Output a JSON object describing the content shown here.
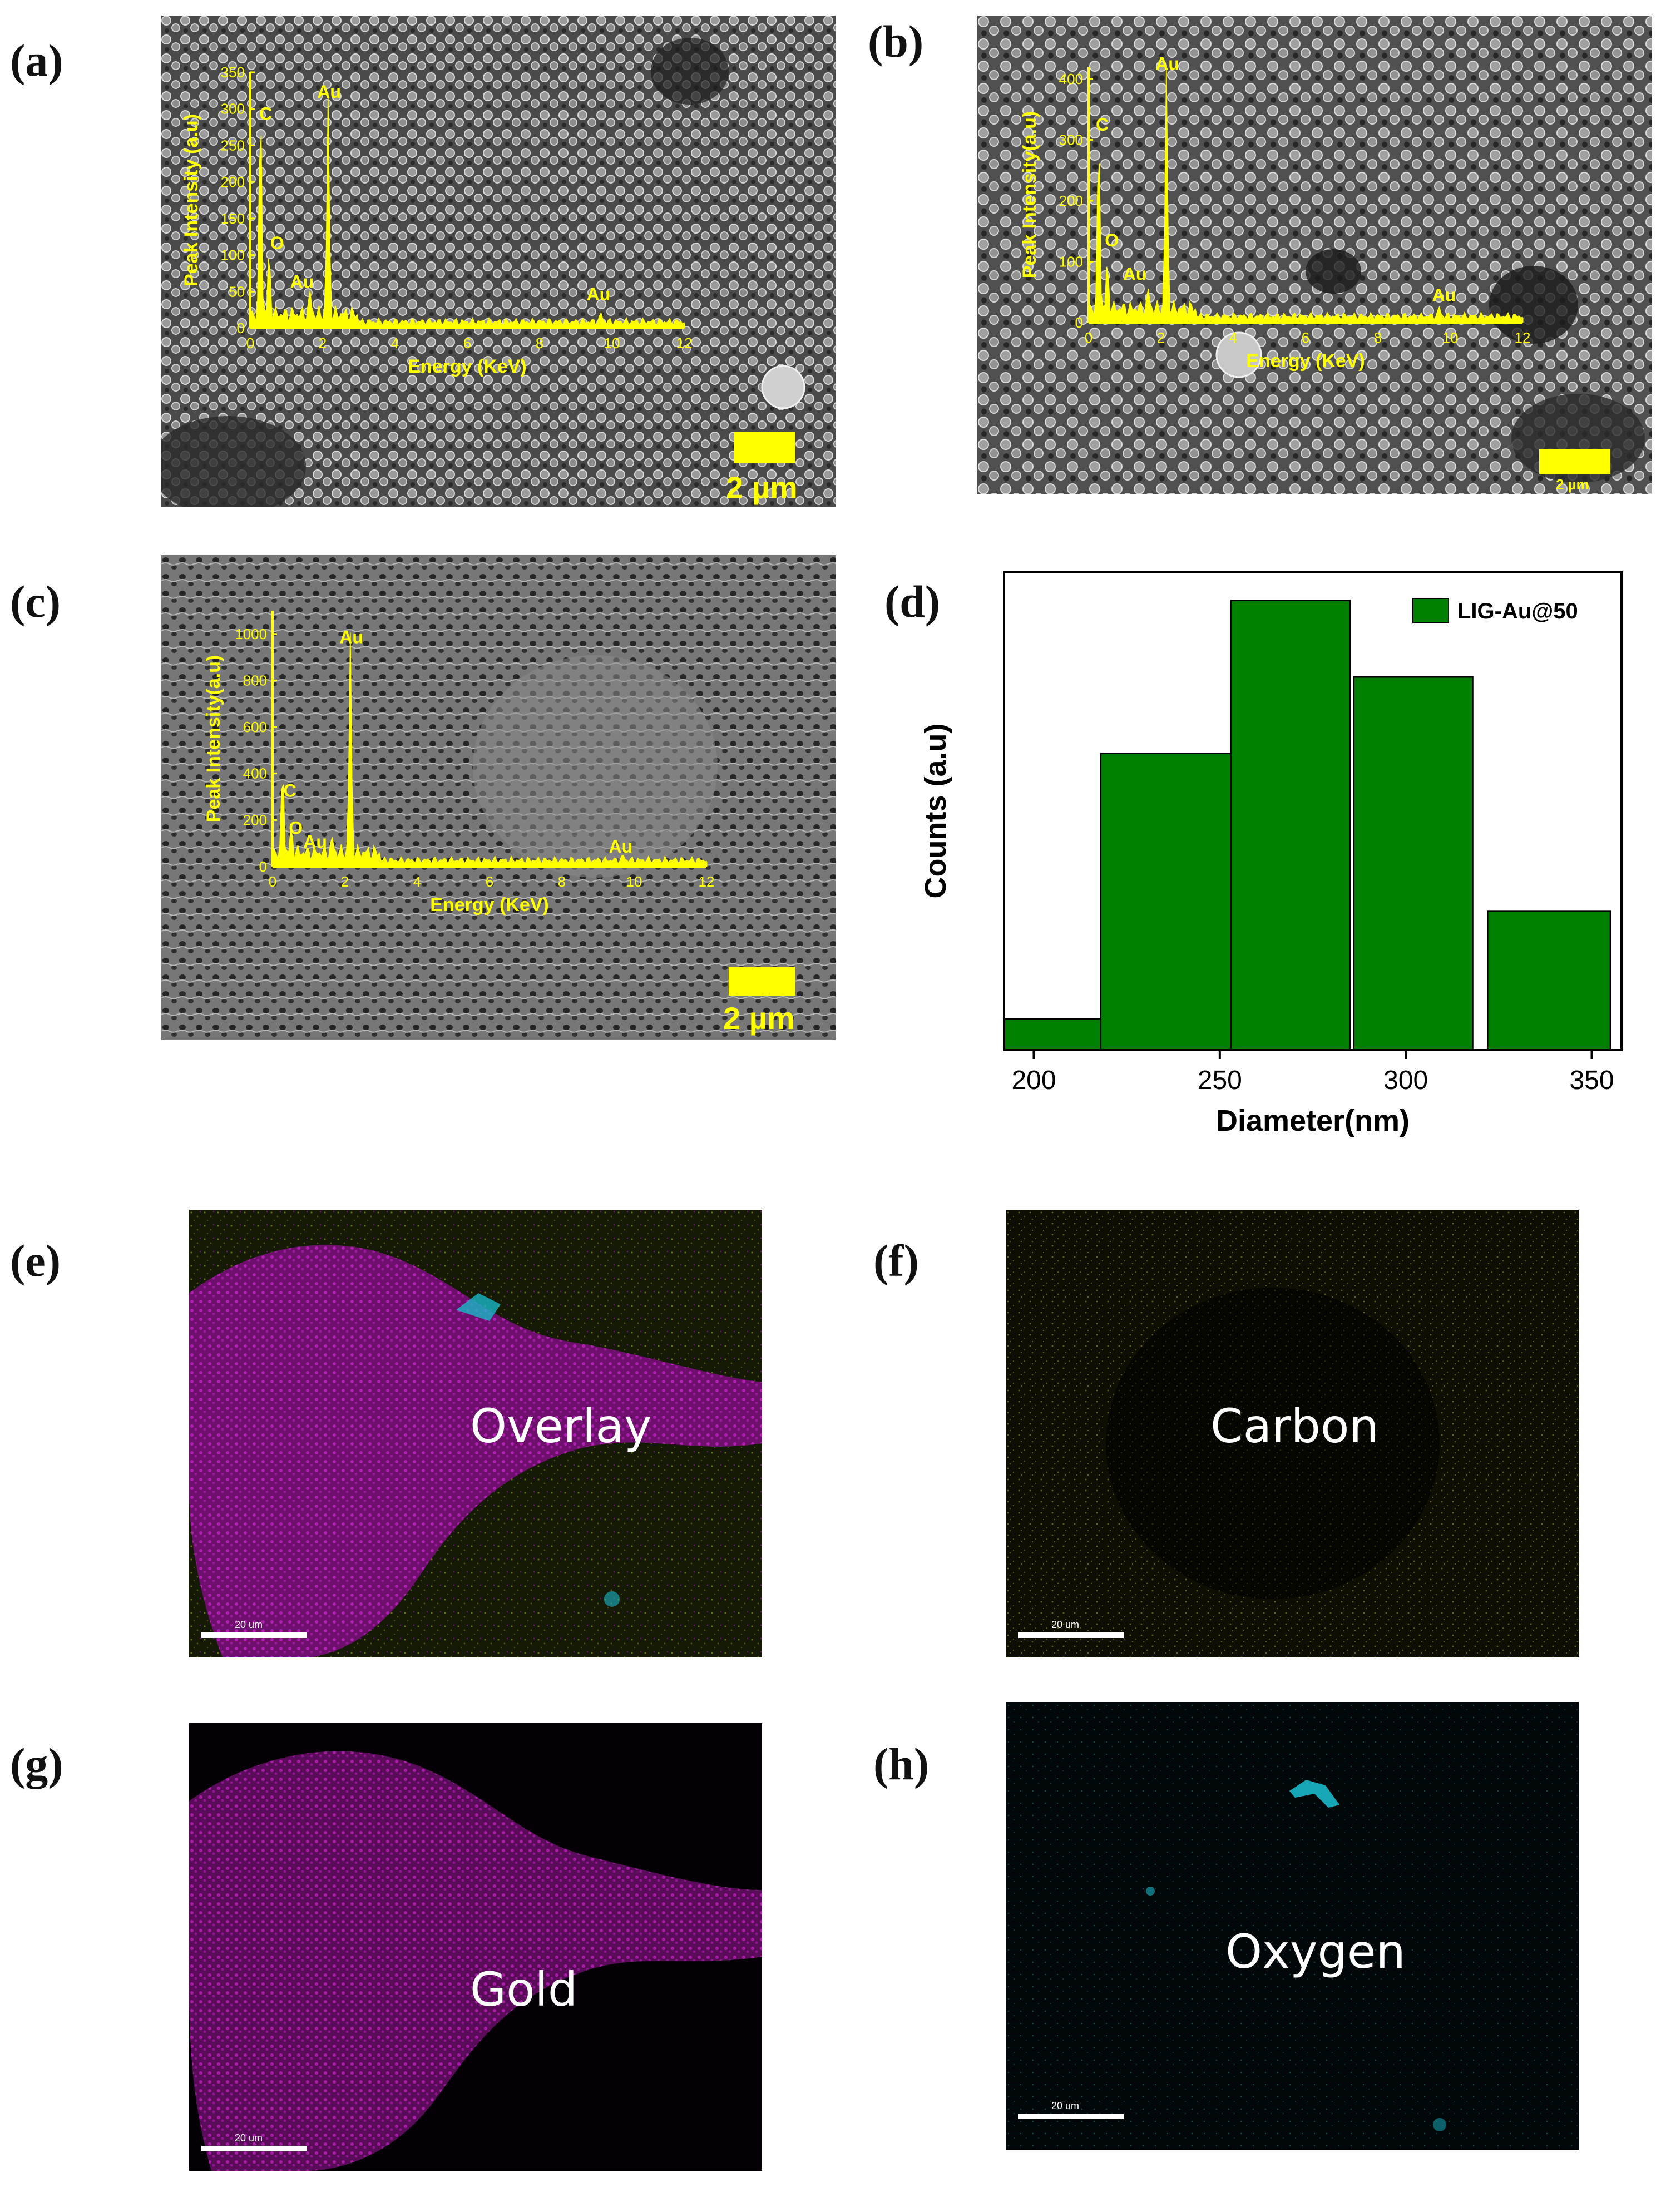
{
  "panels": {
    "a": {
      "label": "(a)",
      "scale_bar": "2 µm"
    },
    "b": {
      "label": "(b)",
      "scale_bar": "2 µm"
    },
    "c": {
      "label": "(c)",
      "scale_bar": "2 µm"
    },
    "d": {
      "label": "(d)"
    },
    "e": {
      "label": "(e)",
      "map_label": "Overlay",
      "scale_bar": "20 um"
    },
    "f": {
      "label": "(f)",
      "map_label": "Carbon",
      "scale_bar": "20 um"
    },
    "g": {
      "label": "(g)",
      "map_label": "Gold",
      "scale_bar": "20 um"
    },
    "h": {
      "label": "(h)",
      "map_label": "Oxygen",
      "scale_bar": "20 um"
    }
  },
  "colors": {
    "spectrum": "#ffff00",
    "bars": "#008000",
    "gold_map": "#b010b0",
    "carbon_map": "#8c8c00",
    "oxygen_map": "#18b8c8"
  },
  "chart_data": [
    {
      "id": "a",
      "type": "area",
      "xlabel": "Energy (KeV)",
      "ylabel": "Peak Intensity (a.u)",
      "xlim": [
        0,
        12
      ],
      "ylim": [
        0,
        350
      ],
      "xticks": [
        0,
        2,
        4,
        6,
        8,
        10,
        12
      ],
      "yticks": [
        0,
        50,
        100,
        150,
        200,
        250,
        300,
        350
      ],
      "peaks": [
        {
          "element": "C",
          "x": 0.28,
          "y": 305
        },
        {
          "element": "O",
          "x": 0.52,
          "y": 85
        },
        {
          "element": "Au",
          "x": 1.65,
          "y": 30
        },
        {
          "element": "Au",
          "x": 2.15,
          "y": 300
        },
        {
          "element": "Au",
          "x": 9.7,
          "y": 12
        }
      ],
      "annotations": [
        {
          "text": "C",
          "x": 0.25,
          "y": 285
        },
        {
          "text": "O",
          "x": 0.55,
          "y": 108
        },
        {
          "text": "Au",
          "x": 1.1,
          "y": 55
        },
        {
          "text": "Au",
          "x": 1.85,
          "y": 315
        },
        {
          "text": "Au",
          "x": 9.3,
          "y": 38
        }
      ]
    },
    {
      "id": "b",
      "type": "area",
      "xlabel": "Energy (KeV)",
      "ylabel": "Peak Intensity(a.u)",
      "xlim": [
        0,
        12
      ],
      "ylim": [
        0,
        420
      ],
      "xticks": [
        0,
        2,
        4,
        6,
        8,
        10,
        12
      ],
      "yticks": [
        0,
        100,
        200,
        300,
        400
      ],
      "peaks": [
        {
          "element": "C",
          "x": 0.28,
          "y": 300
        },
        {
          "element": "O",
          "x": 0.52,
          "y": 75
        },
        {
          "element": "Au",
          "x": 1.65,
          "y": 30
        },
        {
          "element": "Au",
          "x": 2.15,
          "y": 400
        },
        {
          "element": "Au",
          "x": 9.7,
          "y": 15
        }
      ],
      "annotations": [
        {
          "text": "C",
          "x": 0.2,
          "y": 315
        },
        {
          "text": "O",
          "x": 0.45,
          "y": 125
        },
        {
          "text": "Au",
          "x": 0.95,
          "y": 70
        },
        {
          "text": "Au",
          "x": 1.85,
          "y": 415
        },
        {
          "text": "Au",
          "x": 9.5,
          "y": 35
        }
      ]
    },
    {
      "id": "c",
      "type": "area",
      "xlabel": "Energy (KeV)",
      "ylabel": "Peak Intensity(a.u)",
      "xlim": [
        0,
        12
      ],
      "ylim": [
        0,
        1100
      ],
      "xticks": [
        0,
        2,
        4,
        6,
        8,
        10,
        12
      ],
      "yticks": [
        0,
        200,
        400,
        600,
        800,
        1000
      ],
      "peaks": [
        {
          "element": "C",
          "x": 0.28,
          "y": 380
        },
        {
          "element": "O",
          "x": 0.52,
          "y": 100
        },
        {
          "element": "Au",
          "x": 1.65,
          "y": 60
        },
        {
          "element": "Au",
          "x": 2.15,
          "y": 940
        },
        {
          "element": "Au",
          "x": 9.7,
          "y": 20
        }
      ],
      "annotations": [
        {
          "text": "C",
          "x": 0.3,
          "y": 300
        },
        {
          "text": "O",
          "x": 0.45,
          "y": 140
        },
        {
          "text": "Au",
          "x": 0.85,
          "y": 80
        },
        {
          "text": "Au",
          "x": 1.85,
          "y": 960
        },
        {
          "text": "Au",
          "x": 9.3,
          "y": 60
        }
      ]
    },
    {
      "id": "d",
      "type": "bar",
      "xlabel": "Diameter(nm)",
      "ylabel": "Counts (a.u)",
      "xlim": [
        192,
        358
      ],
      "xticks": [
        200,
        250,
        300,
        350
      ],
      "legend": "LIG-Au@50",
      "legend_position": "top-right",
      "bins": [
        {
          "from": 192,
          "to": 218,
          "value": 0.065
        },
        {
          "from": 218,
          "to": 253,
          "value": 0.62
        },
        {
          "from": 253,
          "to": 285,
          "value": 0.94
        },
        {
          "from": 286,
          "to": 318,
          "value": 0.78
        },
        {
          "from": 322,
          "to": 355,
          "value": 0.29
        }
      ]
    }
  ]
}
